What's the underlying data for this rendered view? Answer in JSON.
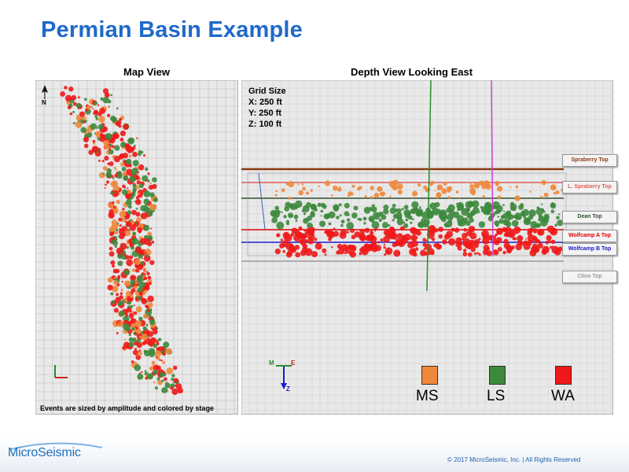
{
  "page": {
    "title": "Permian Basin Example"
  },
  "map_view": {
    "title": "Map View",
    "footnote": "Events are sized by amplitude and colored by stage",
    "compass_north": "N"
  },
  "depth_view": {
    "title": "Depth View Looking East",
    "grid": {
      "line1": "Grid Size",
      "line2": "X: 250 ft",
      "line3": "Y: 250 ft",
      "line4": "Z: 100 ft"
    },
    "formations": [
      {
        "label": "Spraberry Top",
        "color": "#8a3a10"
      },
      {
        "label": "L. Spraberry Top",
        "color": "#e05a5a"
      },
      {
        "label": "Dean Top",
        "color": "#2f4f2f"
      },
      {
        "label": "Wolfcamp A Top",
        "color": "#e00000"
      },
      {
        "label": "Wolfcamp B Top",
        "color": "#1a1ad0"
      },
      {
        "label": "Cline Top",
        "color": "#999999"
      }
    ],
    "axis_labels": {
      "m": "M",
      "e": "E",
      "z": "Z"
    }
  },
  "legend": [
    {
      "label": "MS",
      "color": "#f0883c"
    },
    {
      "label": "LS",
      "color": "#3d8a3d"
    },
    {
      "label": "WA",
      "color": "#f01818"
    }
  ],
  "footer": {
    "logo": "MicroSeismic",
    "copyright": "© 2017 MicroSeismic, Inc. | All Rights Reserved"
  }
}
